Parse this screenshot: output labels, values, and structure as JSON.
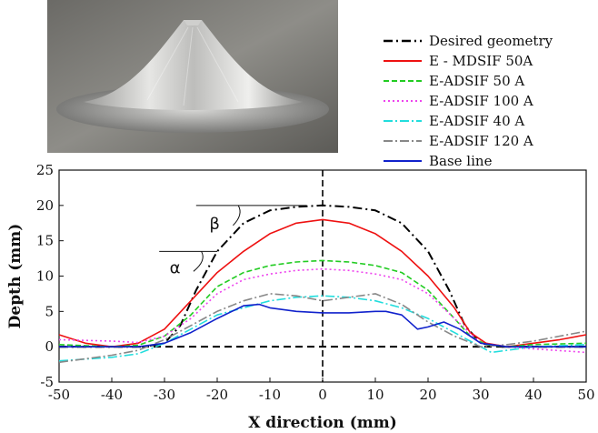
{
  "photo": {
    "alt": "",
    "icon": "cone-workpiece-photo"
  },
  "chart_data": {
    "type": "line",
    "title": "",
    "xlabel": "X direction (mm)",
    "ylabel": "Depth (mm)",
    "xlim": [
      -50,
      50
    ],
    "ylim": [
      -5,
      25
    ],
    "xticks": [
      "-50",
      "-40",
      "-30",
      "-20",
      "-10",
      "0",
      "10",
      "20",
      "30",
      "40",
      "50"
    ],
    "yticks": [
      "-5",
      "0",
      "5",
      "10",
      "15",
      "20",
      "25"
    ],
    "grid": false,
    "legend_position": "top-right",
    "annotations": [
      {
        "text": "β",
        "near_x": -20,
        "near_y": 18
      },
      {
        "text": "α",
        "near_x": -29,
        "near_y": 11
      }
    ],
    "series": [
      {
        "name": "Desired geometry",
        "color": "#000000",
        "dash": "10,4,2,4",
        "width": 2,
        "x": [
          -50,
          -34,
          -30,
          -27,
          -24,
          -20,
          -15,
          -10,
          -5,
          0,
          5,
          10,
          15,
          20,
          24,
          27,
          30,
          34,
          50
        ],
        "y": [
          0,
          0,
          0.5,
          3,
          8,
          13.5,
          17.5,
          19.3,
          19.8,
          20,
          19.8,
          19.3,
          17.5,
          13.5,
          8,
          3,
          0.5,
          0,
          0
        ]
      },
      {
        "name": "E - MDSIF 50A",
        "color": "#ee1111",
        "dash": "",
        "width": 1.6,
        "x": [
          -50,
          -45,
          -40,
          -35,
          -30,
          -25,
          -20,
          -15,
          -10,
          -5,
          0,
          5,
          10,
          15,
          20,
          25,
          28,
          31,
          35,
          40,
          45,
          50
        ],
        "y": [
          1.7,
          0.5,
          0,
          0.5,
          2.5,
          6.5,
          10.5,
          13.5,
          16,
          17.5,
          18,
          17.5,
          16,
          13.5,
          10,
          5.5,
          2,
          0.5,
          0,
          0.5,
          1,
          1.7
        ]
      },
      {
        "name": "E-ADSIF  50 A",
        "color": "#22cc22",
        "dash": "6,3",
        "width": 1.6,
        "x": [
          -50,
          -40,
          -35,
          -30,
          -25,
          -20,
          -15,
          -10,
          -5,
          0,
          5,
          10,
          15,
          20,
          25,
          28,
          31,
          35,
          40,
          50
        ],
        "y": [
          0.3,
          0,
          0.2,
          1.5,
          4.5,
          8.5,
          10.5,
          11.5,
          12,
          12.2,
          12,
          11.5,
          10.5,
          8,
          4,
          1.5,
          0.3,
          0,
          0.3,
          0.5
        ]
      },
      {
        "name": "E-ADSIF  100 A",
        "color": "#ee44ee",
        "dash": "2,3",
        "width": 1.6,
        "x": [
          -50,
          -40,
          -35,
          -30,
          -25,
          -20,
          -15,
          -10,
          -5,
          0,
          5,
          10,
          15,
          20,
          25,
          30,
          35,
          40,
          50
        ],
        "y": [
          1,
          0.8,
          0.6,
          1.5,
          4,
          7.5,
          9.5,
          10.3,
          10.8,
          11,
          10.8,
          10.3,
          9.5,
          7.5,
          4,
          0.5,
          0,
          -0.3,
          -0.8
        ]
      },
      {
        "name": "E-ADSIF  40 A",
        "color": "#22dddd",
        "dash": "10,3,2,3",
        "width": 1.6,
        "x": [
          -50,
          -40,
          -35,
          -30,
          -25,
          -20,
          -15,
          -10,
          -5,
          0,
          5,
          10,
          15,
          20,
          25,
          30,
          32,
          35,
          40,
          50
        ],
        "y": [
          -2,
          -1.5,
          -1,
          0.5,
          2.5,
          4.5,
          5.5,
          6.5,
          7,
          7.2,
          7,
          6.5,
          5.5,
          4,
          2,
          0,
          -0.8,
          -0.5,
          0,
          0.3
        ]
      },
      {
        "name": "E-ADSIF  120 A",
        "color": "#888888",
        "dash": "10,3,2,3",
        "width": 1.6,
        "x": [
          -50,
          -40,
          -35,
          -30,
          -25,
          -20,
          -15,
          -10,
          -5,
          0,
          5,
          10,
          15,
          20,
          25,
          30,
          35,
          40,
          45,
          50
        ],
        "y": [
          -2.2,
          -1.2,
          -0.5,
          1,
          3,
          5,
          6.5,
          7.5,
          7.2,
          6.5,
          7,
          7.5,
          6,
          3.5,
          1.5,
          0,
          0.3,
          0.8,
          1.5,
          2.2
        ]
      },
      {
        "name": "Base line",
        "color": "#1122cc",
        "dash": "",
        "width": 1.6,
        "x": [
          -50,
          -40,
          -35,
          -30,
          -25,
          -20,
          -15,
          -12,
          -10,
          -5,
          0,
          5,
          10,
          12,
          15,
          18,
          20,
          23,
          26,
          30,
          35,
          40,
          50
        ],
        "y": [
          0,
          0,
          0,
          0.5,
          2,
          4,
          5.8,
          6,
          5.5,
          5,
          4.8,
          4.8,
          5,
          5,
          4.5,
          2.5,
          2.8,
          3.5,
          2.5,
          0.5,
          0,
          0,
          0
        ]
      }
    ]
  }
}
